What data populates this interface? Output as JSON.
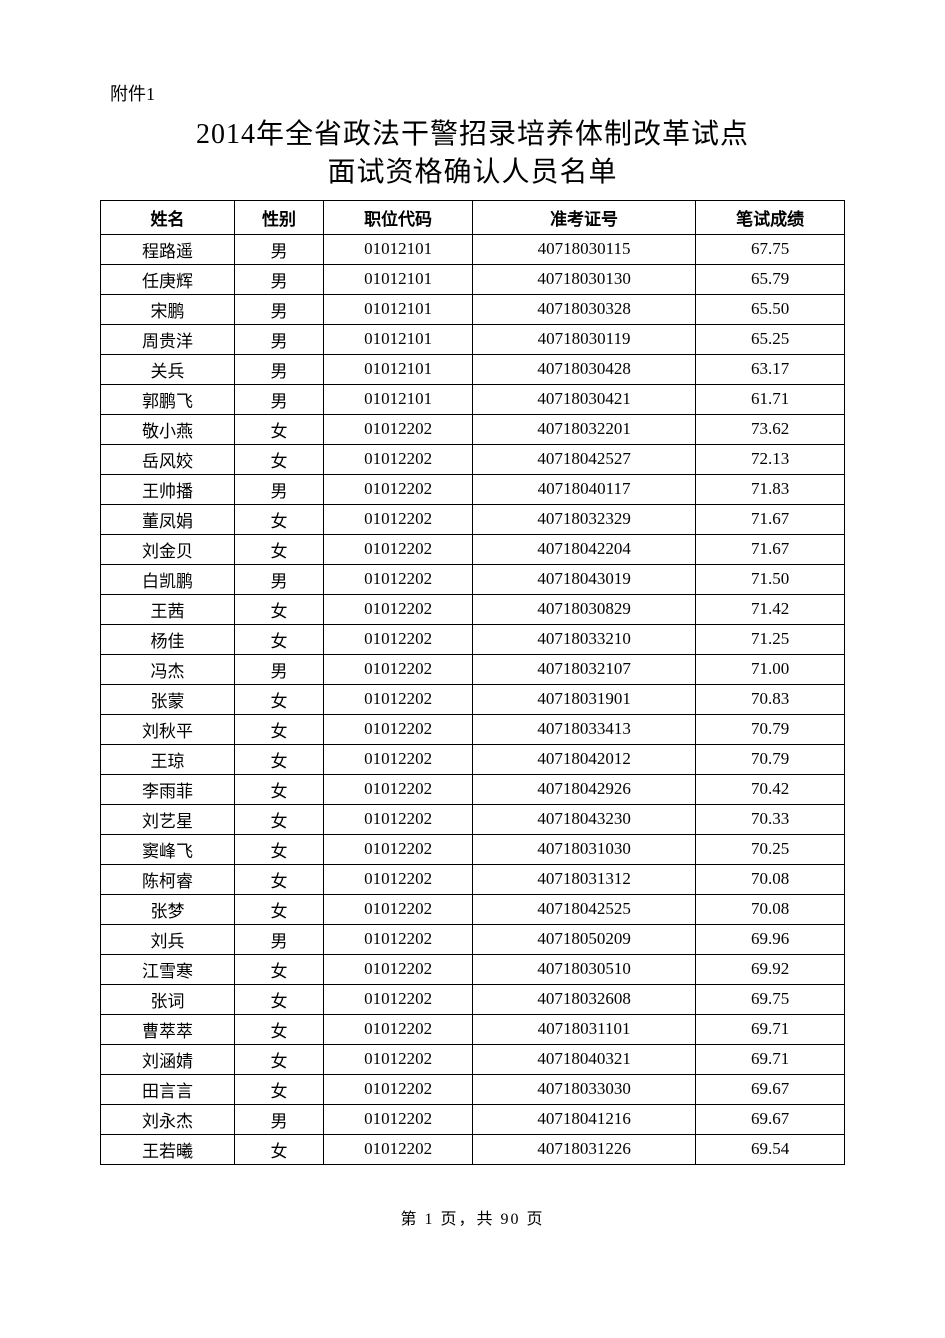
{
  "attachment_label": "附件1",
  "title_line1": "2014年全省政法干警招录培养体制改革试点",
  "title_line2": "面试资格确认人员名单",
  "table": {
    "columns": [
      "姓名",
      "性别",
      "职位代码",
      "准考证号",
      "笔试成绩"
    ],
    "column_widths_pct": [
      18,
      12,
      20,
      30,
      20
    ],
    "border_color": "#000000",
    "header_font_weight": "bold",
    "font_size_pt": 13,
    "rows": [
      [
        "程路遥",
        "男",
        "01012101",
        "40718030115",
        "67.75"
      ],
      [
        "任庚辉",
        "男",
        "01012101",
        "40718030130",
        "65.79"
      ],
      [
        "宋鹏",
        "男",
        "01012101",
        "40718030328",
        "65.50"
      ],
      [
        "周贵洋",
        "男",
        "01012101",
        "40718030119",
        "65.25"
      ],
      [
        "关兵",
        "男",
        "01012101",
        "40718030428",
        "63.17"
      ],
      [
        "郭鹏飞",
        "男",
        "01012101",
        "40718030421",
        "61.71"
      ],
      [
        "敬小燕",
        "女",
        "01012202",
        "40718032201",
        "73.62"
      ],
      [
        "岳风姣",
        "女",
        "01012202",
        "40718042527",
        "72.13"
      ],
      [
        "王帅播",
        "男",
        "01012202",
        "40718040117",
        "71.83"
      ],
      [
        "董凤娟",
        "女",
        "01012202",
        "40718032329",
        "71.67"
      ],
      [
        "刘金贝",
        "女",
        "01012202",
        "40718042204",
        "71.67"
      ],
      [
        "白凯鹏",
        "男",
        "01012202",
        "40718043019",
        "71.50"
      ],
      [
        "王茜",
        "女",
        "01012202",
        "40718030829",
        "71.42"
      ],
      [
        "杨佳",
        "女",
        "01012202",
        "40718033210",
        "71.25"
      ],
      [
        "冯杰",
        "男",
        "01012202",
        "40718032107",
        "71.00"
      ],
      [
        "张蒙",
        "女",
        "01012202",
        "40718031901",
        "70.83"
      ],
      [
        "刘秋平",
        "女",
        "01012202",
        "40718033413",
        "70.79"
      ],
      [
        "王琼",
        "女",
        "01012202",
        "40718042012",
        "70.79"
      ],
      [
        "李雨菲",
        "女",
        "01012202",
        "40718042926",
        "70.42"
      ],
      [
        "刘艺星",
        "女",
        "01012202",
        "40718043230",
        "70.33"
      ],
      [
        "窦峰飞",
        "女",
        "01012202",
        "40718031030",
        "70.25"
      ],
      [
        "陈柯睿",
        "女",
        "01012202",
        "40718031312",
        "70.08"
      ],
      [
        "张梦",
        "女",
        "01012202",
        "40718042525",
        "70.08"
      ],
      [
        "刘兵",
        "男",
        "01012202",
        "40718050209",
        "69.96"
      ],
      [
        "江雪寒",
        "女",
        "01012202",
        "40718030510",
        "69.92"
      ],
      [
        "张词",
        "女",
        "01012202",
        "40718032608",
        "69.75"
      ],
      [
        "曹萃萃",
        "女",
        "01012202",
        "40718031101",
        "69.71"
      ],
      [
        "刘涵婧",
        "女",
        "01012202",
        "40718040321",
        "69.71"
      ],
      [
        "田言言",
        "女",
        "01012202",
        "40718033030",
        "69.67"
      ],
      [
        "刘永杰",
        "男",
        "01012202",
        "40718041216",
        "69.67"
      ],
      [
        "王若曦",
        "女",
        "01012202",
        "40718031226",
        "69.54"
      ]
    ]
  },
  "pagination": {
    "current": 1,
    "total": 90,
    "text": "第 1 页，共 90 页"
  },
  "colors": {
    "background": "#ffffff",
    "text": "#000000",
    "border": "#000000"
  }
}
